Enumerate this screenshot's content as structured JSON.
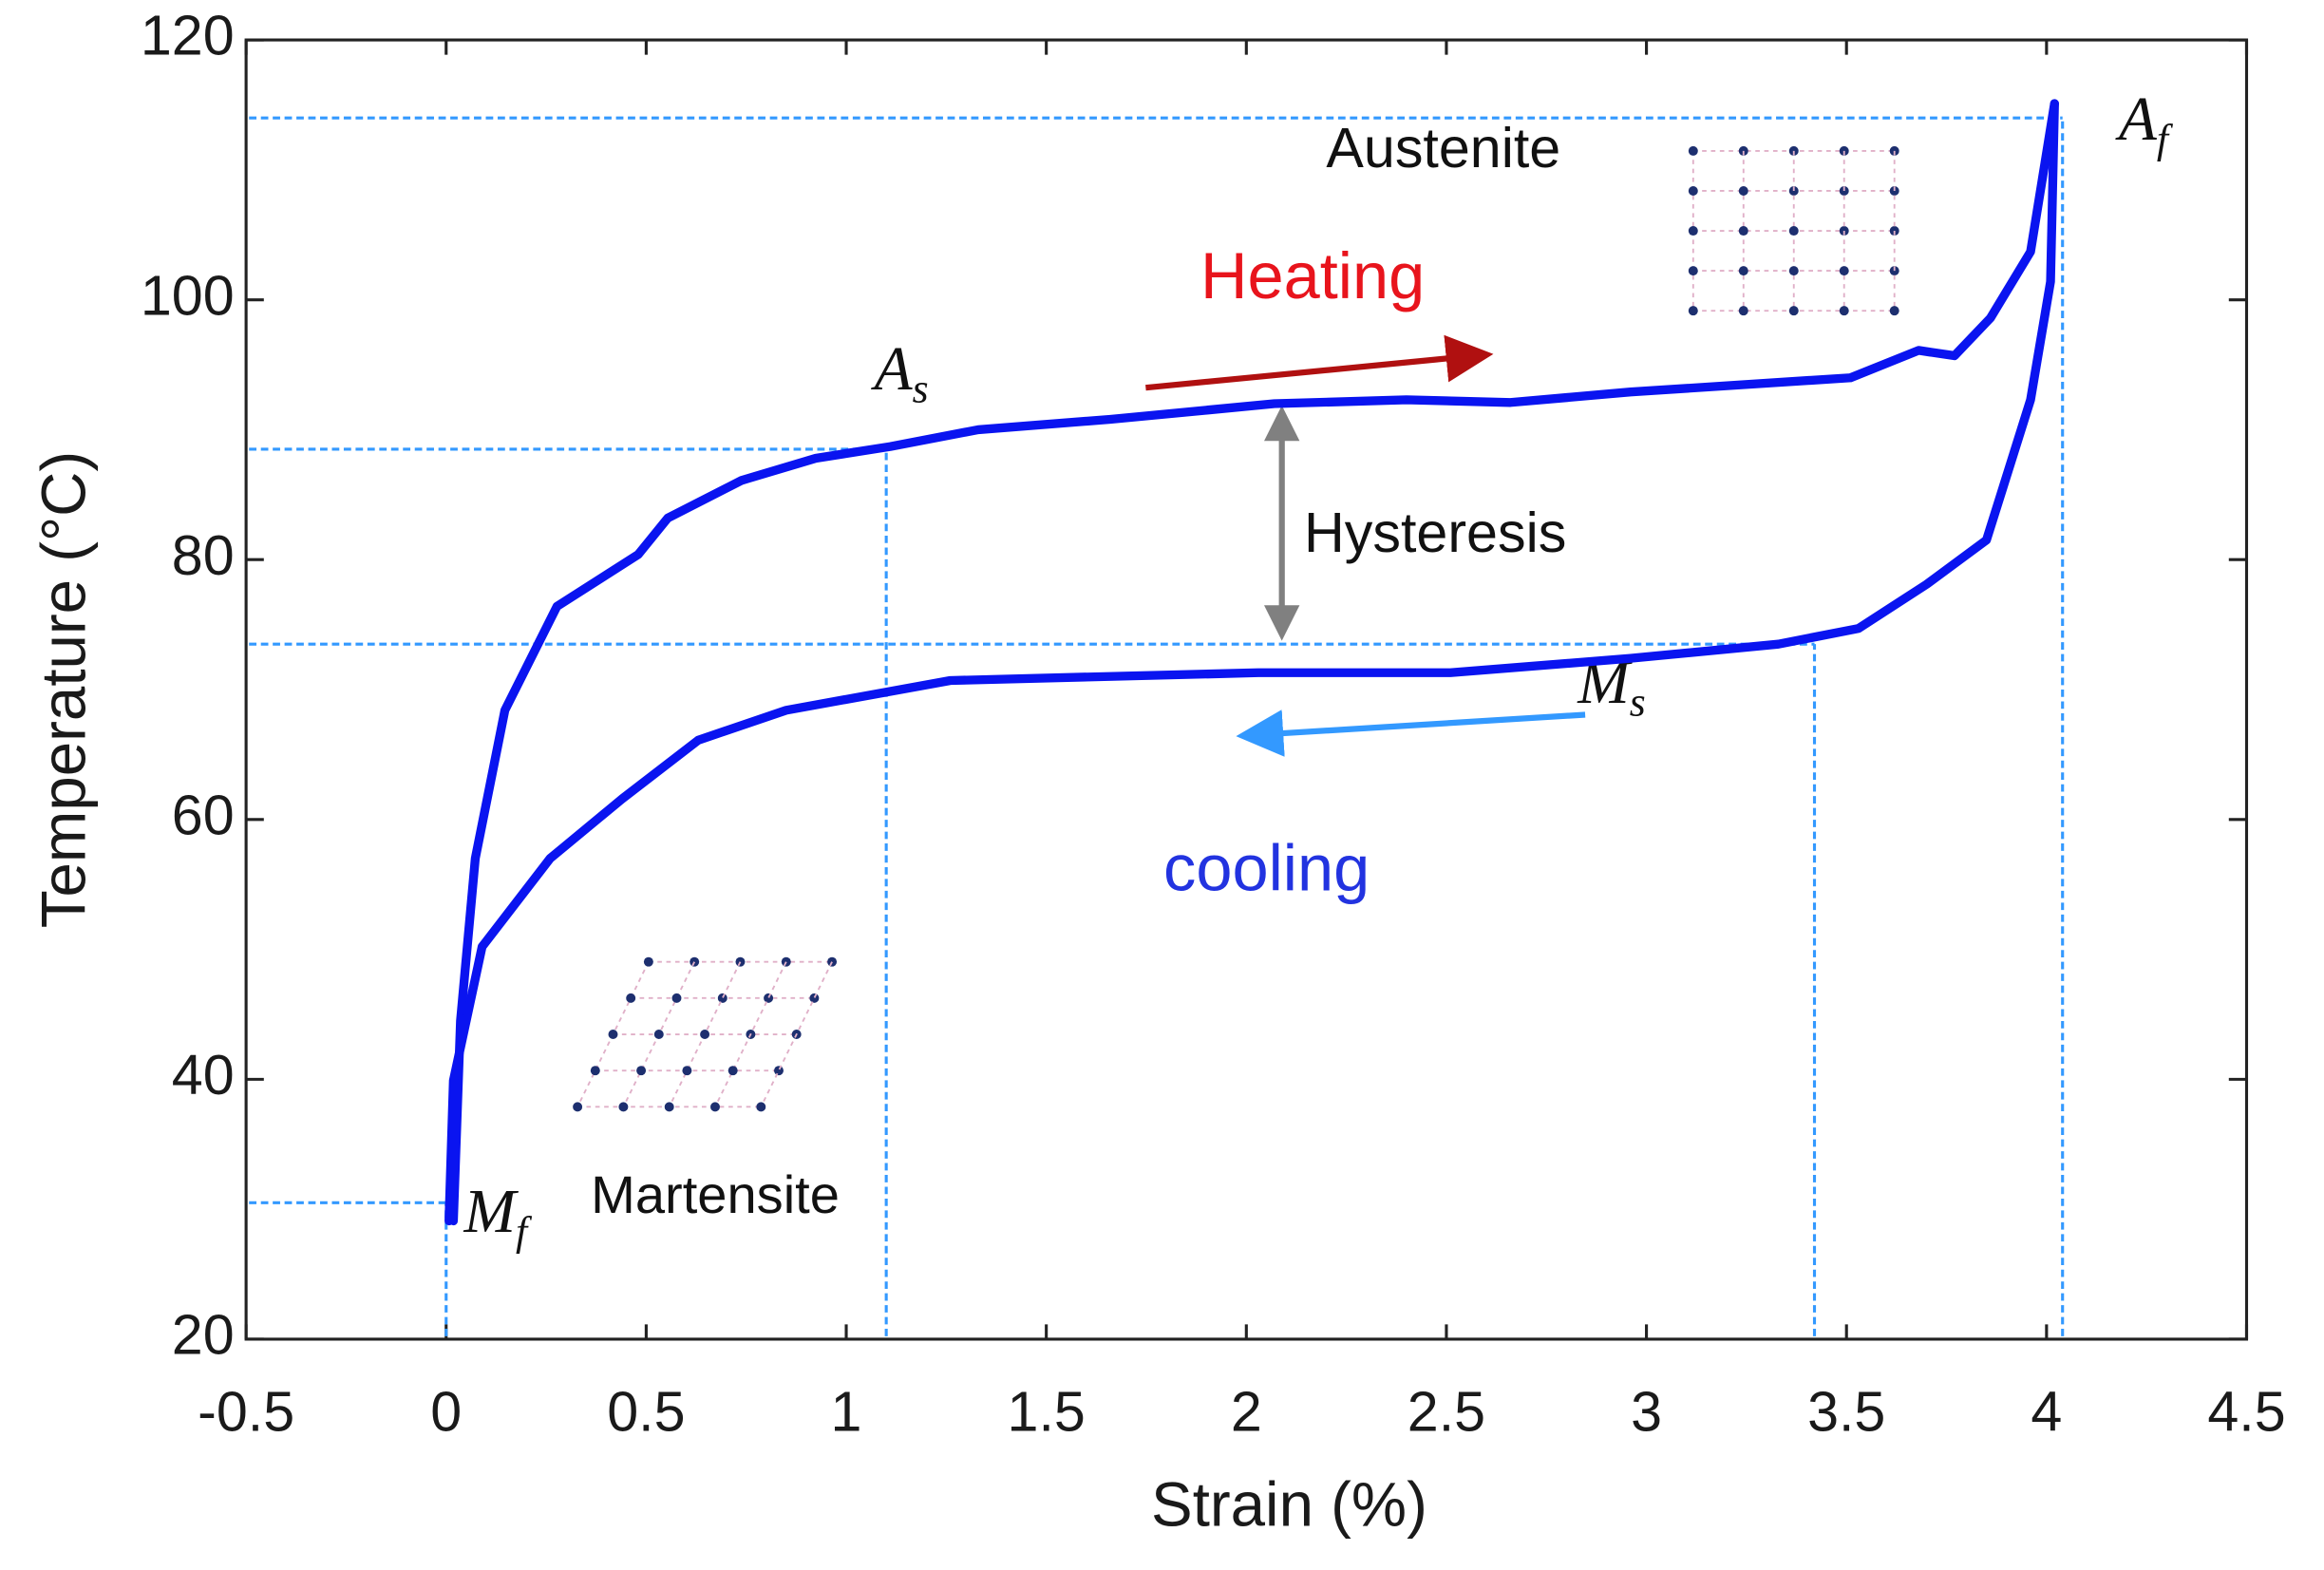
{
  "chart_data": {
    "type": "line",
    "xlabel": "Strain (%)",
    "ylabel": "Temperature (°C)",
    "xlim": [
      -0.5,
      4.5
    ],
    "ylim": [
      20,
      120
    ],
    "xticks": [
      -0.5,
      0,
      0.5,
      1,
      1.5,
      2,
      2.5,
      3,
      3.5,
      4,
      4.5
    ],
    "yticks": [
      20,
      40,
      60,
      80,
      100,
      120
    ],
    "series": [
      {
        "color": "#0a14f0",
        "x": [
          0.018,
          0.036,
          0.073,
          0.147,
          0.277,
          0.48,
          0.554,
          0.739,
          0.924,
          1.11,
          1.33,
          1.66,
          2.07,
          2.4,
          2.66,
          2.96,
          3.51,
          3.68,
          3.77,
          3.86,
          3.96,
          4.02
        ],
        "values": [
          29.1,
          44.5,
          57,
          68.4,
          76.4,
          80.4,
          83.2,
          86.1,
          87.8,
          88.7,
          90.0,
          90.8,
          92.0,
          92.3,
          92.1,
          92.9,
          94.0,
          96.1,
          95.7,
          98.6,
          103.7,
          115.1
        ]
      },
      {
        "color": "#0a14f0",
        "x": [
          4.02,
          4.01,
          3.96,
          3.85,
          3.7,
          3.53,
          3.33,
          2.96,
          2.51,
          2.03,
          1.26,
          0.85,
          0.63,
          0.44,
          0.26,
          0.09,
          0.018,
          0.007
        ],
        "values": [
          115.1,
          101.4,
          92.3,
          81.5,
          78.1,
          74.7,
          73.5,
          72.4,
          71.3,
          71.3,
          70.7,
          68.4,
          66.1,
          61.6,
          57.0,
          50.2,
          39.9,
          29.1
        ]
      }
    ],
    "transition_points": [
      {
        "name": "A",
        "sub": "s",
        "x": 1.1,
        "y": 88.5
      },
      {
        "name": "A",
        "sub": "f",
        "x": 4.04,
        "y": 114
      },
      {
        "name": "M",
        "sub": "s",
        "x": 3.42,
        "y": 73.5
      },
      {
        "name": "M",
        "sub": "f",
        "x": 0,
        "y": 30.5
      }
    ],
    "annotations": [
      "Austenite",
      "Heating",
      "Hysteresis",
      "cooling",
      "Martensite"
    ]
  }
}
